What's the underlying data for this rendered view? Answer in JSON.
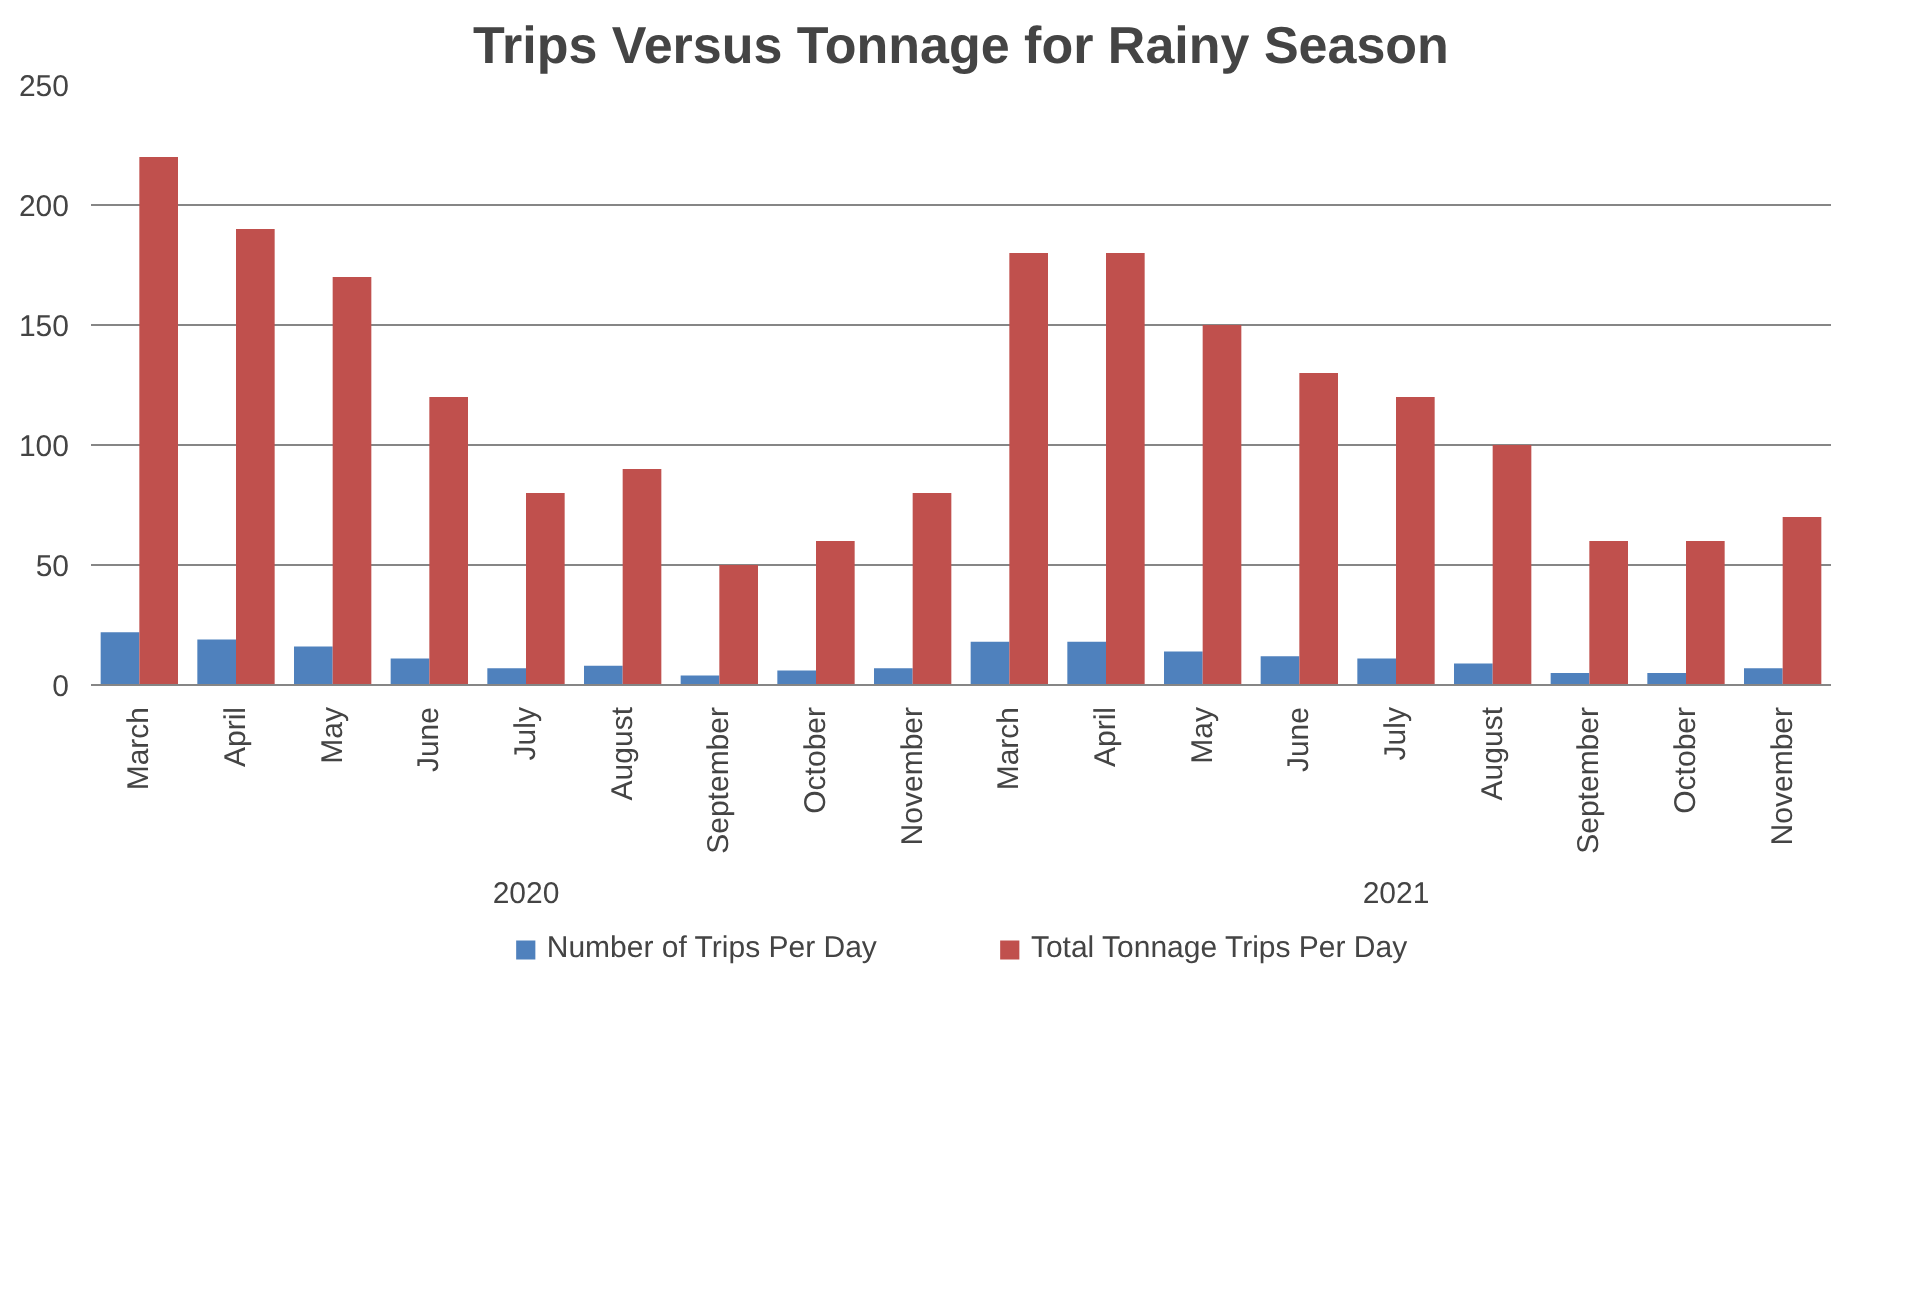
{
  "chart_data": {
    "type": "bar",
    "title": "Trips Versus Tonnage for Rainy Season",
    "categories": [
      "March",
      "April",
      "May",
      "June",
      "July",
      "August",
      "September",
      "October",
      "November",
      "March",
      "April",
      "May",
      "June",
      "July",
      "August",
      "September",
      "October",
      "November"
    ],
    "series": [
      {
        "name": "Number of Trips Per Day",
        "color": "#4f81bd",
        "values": [
          22,
          19,
          16,
          11,
          7,
          8,
          4,
          6,
          7,
          18,
          18,
          14,
          12,
          11,
          9,
          5,
          5,
          7
        ]
      },
      {
        "name": "Total Tonnage Trips Per Day",
        "color": "#c0504d",
        "values": [
          220,
          190,
          170,
          120,
          80,
          90,
          50,
          60,
          80,
          180,
          180,
          150,
          130,
          120,
          100,
          60,
          60,
          70
        ]
      }
    ],
    "annotations": [
      "2020",
      "2021"
    ],
    "ylim": [
      0,
      250
    ],
    "yticks": [
      0,
      50,
      100,
      150,
      200,
      250
    ],
    "grid": "y",
    "legend": "bottom"
  }
}
